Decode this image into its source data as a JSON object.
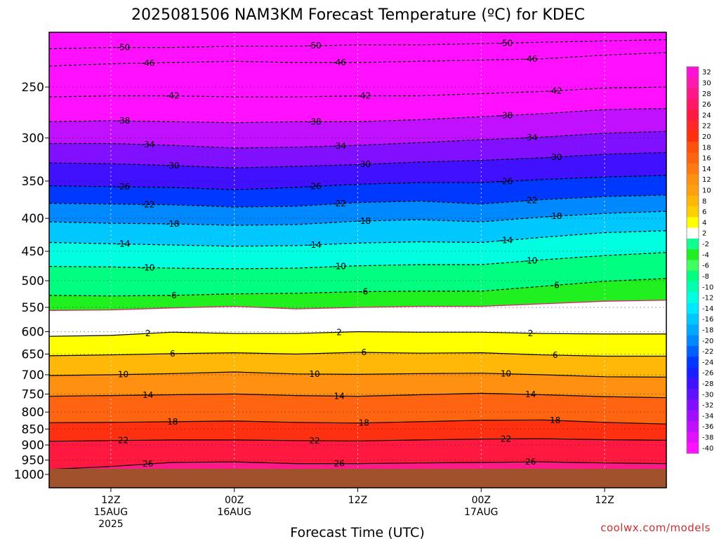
{
  "chart_data": {
    "type": "heatmap",
    "title": "2025081506 NAM3KM Forecast Temperature (ºC) for KDEC",
    "xlabel": "Forecast Time (UTC)",
    "ylabel": "",
    "credit": "coolwx.com/models",
    "y_scale": "log",
    "y_unit": "hPa",
    "ylim": [
      1000,
      200
    ],
    "y_ticks": [
      "250",
      "300",
      "350",
      "400",
      "450",
      "500",
      "550",
      "600",
      "650",
      "700",
      "750",
      "800",
      "850",
      "900",
      "950",
      "1000"
    ],
    "x_ticks": [
      {
        "hour": 6,
        "label": "12Z",
        "label2": "15AUG",
        "label3": "2025"
      },
      {
        "hour": 18,
        "label": "00Z",
        "label2": "16AUG",
        "label3": ""
      },
      {
        "hour": 30,
        "label": "12Z",
        "label2": "",
        "label3": ""
      },
      {
        "hour": 42,
        "label": "00Z",
        "label2": "17AUG",
        "label3": ""
      },
      {
        "hour": 54,
        "label": "12Z",
        "label2": "",
        "label3": ""
      }
    ],
    "xlim_hours": [
      0,
      60
    ],
    "ground_pressure": 980,
    "colorbar_ticks": [
      "32",
      "30",
      "28",
      "26",
      "24",
      "22",
      "20",
      "18",
      "16",
      "14",
      "12",
      "10",
      "8",
      "6",
      "4",
      "2",
      "-2",
      "-4",
      "-6",
      "-8",
      "-10",
      "-12",
      "-14",
      "-16",
      "-18",
      "-20",
      "-22",
      "-24",
      "-26",
      "-28",
      "-30",
      "-32",
      "-34",
      "-36",
      "-38",
      "-40"
    ],
    "colorbar_colors": [
      "#ff10d8",
      "#ff18b0",
      "#ff1888",
      "#ff1868",
      "#ff1840",
      "#ff2828",
      "#ff3010",
      "#ff5010",
      "#ff6410",
      "#ff7a10",
      "#ff9010",
      "#ffa010",
      "#ffb808",
      "#ffd000",
      "#ffff00",
      "#ffffff",
      "#10ff90",
      "#20f020",
      "#40ff60",
      "#00ff80",
      "#00ffb0",
      "#00ffe0",
      "#00e8ff",
      "#00c8ff",
      "#00a8ff",
      "#0088ff",
      "#0060ff",
      "#0038ff",
      "#1820ff",
      "#4010ff",
      "#6010ff",
      "#8010ff",
      "#a010ff",
      "#c010ff",
      "#e010ff",
      "#ff10ff"
    ],
    "contour_levels": [
      {
        "value": -50,
        "label": "-50",
        "pressures": [
          218,
          217,
          217,
          216,
          216,
          215,
          215,
          214,
          213,
          212,
          211
        ]
      },
      {
        "value": -46,
        "label": "-46",
        "pressures": [
          232,
          230,
          229,
          228,
          229,
          229,
          228,
          227,
          226,
          223,
          221
        ]
      },
      {
        "value": -42,
        "label": "-42",
        "pressures": [
          259,
          258,
          258,
          259,
          259,
          258,
          258,
          256,
          254,
          251,
          250
        ]
      },
      {
        "value": -38,
        "label": "-38",
        "pressures": [
          283,
          282,
          283,
          284,
          283,
          283,
          281,
          278,
          275,
          271,
          270
        ]
      },
      {
        "value": -34,
        "label": "-34",
        "pressures": [
          306,
          306,
          308,
          311,
          310,
          308,
          305,
          302,
          299,
          295,
          293
        ]
      },
      {
        "value": -30,
        "label": "-30",
        "pressures": [
          328,
          329,
          331,
          334,
          332,
          330,
          327,
          325,
          322,
          318,
          316
        ]
      },
      {
        "value": -26,
        "label": "-26",
        "pressures": [
          356,
          357,
          358,
          361,
          358,
          354,
          352,
          352,
          348,
          345,
          343
        ]
      },
      {
        "value": -22,
        "label": "-22",
        "pressures": [
          379,
          380,
          381,
          384,
          383,
          378,
          376,
          380,
          374,
          370,
          368
        ]
      },
      {
        "value": -18,
        "label": "-18",
        "pressures": [
          405,
          407,
          408,
          410,
          409,
          404,
          402,
          405,
          398,
          393,
          390
        ]
      },
      {
        "value": -14,
        "label": "-14",
        "pressures": [
          436,
          438,
          440,
          442,
          441,
          437,
          435,
          436,
          428,
          421,
          418
        ]
      },
      {
        "value": -10,
        "label": "-10",
        "pressures": [
          475,
          476,
          478,
          479,
          478,
          474,
          472,
          472,
          464,
          457,
          452
        ]
      },
      {
        "value": -6,
        "label": "-6",
        "pressures": [
          527,
          528,
          527,
          524,
          523,
          520,
          519,
          519,
          510,
          501,
          496
        ]
      },
      {
        "value": -2,
        "label": "",
        "pressures": [
          556,
          555,
          551,
          548,
          553,
          550,
          548,
          548,
          543,
          538,
          536
        ]
      },
      {
        "value": 2,
        "label": "2",
        "pressures": [
          610,
          608,
          601,
          604,
          604,
          600,
          601,
          601,
          604,
          605,
          605
        ]
      },
      {
        "value": 6,
        "label": "6",
        "pressures": [
          654,
          652,
          649,
          647,
          650,
          646,
          648,
          647,
          652,
          655,
          655
        ]
      },
      {
        "value": 10,
        "label": "10",
        "pressures": [
          702,
          700,
          697,
          693,
          698,
          699,
          697,
          696,
          700,
          705,
          706
        ]
      },
      {
        "value": 14,
        "label": "14",
        "pressures": [
          756,
          754,
          752,
          750,
          754,
          756,
          752,
          748,
          752,
          757,
          760
        ]
      },
      {
        "value": 18,
        "label": "18",
        "pressures": [
          831,
          830,
          828,
          826,
          830,
          832,
          828,
          824,
          823,
          830,
          835
        ]
      },
      {
        "value": 22,
        "label": "22",
        "pressures": [
          888,
          886,
          884,
          884,
          886,
          887,
          884,
          881,
          880,
          883,
          885
        ]
      },
      {
        "value": 26,
        "label": "26",
        "pressures": [
          982,
          972,
          958,
          956,
          962,
          962,
          960,
          958,
          956,
          960,
          962
        ]
      }
    ]
  }
}
